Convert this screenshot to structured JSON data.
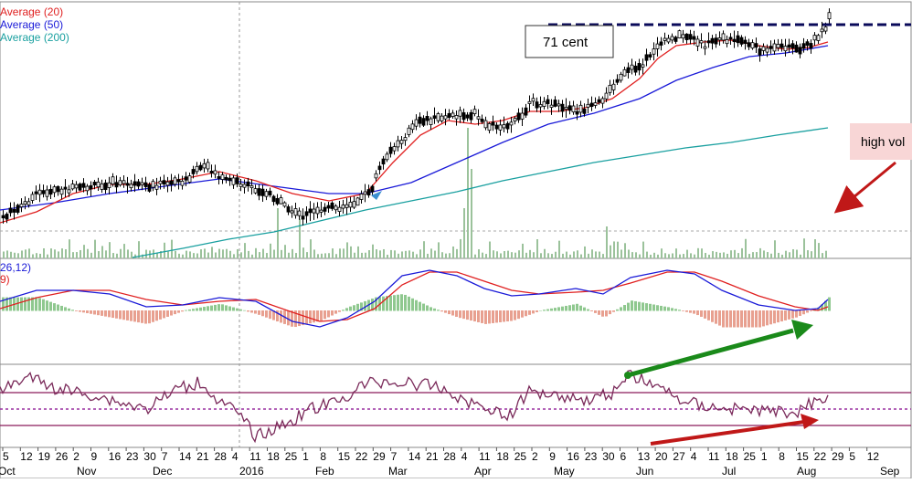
{
  "chart_data": [
    {
      "type": "candlestick",
      "panel": "price",
      "legend": [
        "Average (20)",
        "Average (50)",
        "Average (200)"
      ],
      "colors": {
        "ma20": "#e02020",
        "ma50": "#1a1ad8",
        "ma200": "#1aa0a0",
        "volume": "#9bc29b",
        "candle": "#000000"
      },
      "price_path": [
        [
          0,
          238
        ],
        [
          20,
          228
        ],
        [
          40,
          212
        ],
        [
          60,
          208
        ],
        [
          80,
          207
        ],
        [
          100,
          204
        ],
        [
          120,
          200
        ],
        [
          140,
          202
        ],
        [
          160,
          205
        ],
        [
          180,
          200
        ],
        [
          200,
          198
        ],
        [
          210,
          190
        ],
        [
          220,
          182
        ],
        [
          230,
          186
        ],
        [
          240,
          195
        ],
        [
          260,
          200
        ],
        [
          280,
          208
        ],
        [
          295,
          212
        ],
        [
          305,
          222
        ],
        [
          318,
          232
        ],
        [
          330,
          236
        ],
        [
          345,
          232
        ],
        [
          360,
          228
        ],
        [
          375,
          226
        ],
        [
          390,
          220
        ],
        [
          405,
          208
        ],
        [
          412,
          188
        ],
        [
          420,
          175
        ],
        [
          430,
          162
        ],
        [
          440,
          152
        ],
        [
          450,
          140
        ],
        [
          460,
          132
        ],
        [
          475,
          130
        ],
        [
          490,
          128
        ],
        [
          505,
          126
        ],
        [
          520,
          124
        ],
        [
          530,
          136
        ],
        [
          545,
          138
        ],
        [
          560,
          134
        ],
        [
          570,
          128
        ],
        [
          580,
          112
        ],
        [
          600,
          114
        ],
        [
          615,
          118
        ],
        [
          630,
          122
        ],
        [
          645,
          118
        ],
        [
          655,
          112
        ],
        [
          665,
          100
        ],
        [
          675,
          90
        ],
        [
          685,
          78
        ],
        [
          700,
          72
        ],
        [
          712,
          58
        ],
        [
          720,
          48
        ],
        [
          730,
          42
        ],
        [
          745,
          40
        ],
        [
          760,
          44
        ],
        [
          770,
          50
        ],
        [
          785,
          44
        ],
        [
          800,
          42
        ],
        [
          815,
          46
        ],
        [
          830,
          54
        ],
        [
          845,
          54
        ],
        [
          860,
          50
        ],
        [
          875,
          54
        ],
        [
          885,
          48
        ],
        [
          895,
          40
        ],
        [
          902,
          30
        ],
        [
          906,
          20
        ]
      ],
      "ma20_path": [
        [
          0,
          244
        ],
        [
          40,
          232
        ],
        [
          80,
          212
        ],
        [
          120,
          202
        ],
        [
          160,
          202
        ],
        [
          200,
          196
        ],
        [
          240,
          188
        ],
        [
          280,
          198
        ],
        [
          320,
          212
        ],
        [
          360,
          220
        ],
        [
          400,
          212
        ],
        [
          430,
          178
        ],
        [
          460,
          148
        ],
        [
          490,
          132
        ],
        [
          520,
          136
        ],
        [
          550,
          132
        ],
        [
          580,
          122
        ],
        [
          610,
          122
        ],
        [
          640,
          118
        ],
        [
          670,
          108
        ],
        [
          700,
          86
        ],
        [
          720,
          64
        ],
        [
          740,
          50
        ],
        [
          770,
          46
        ],
        [
          800,
          44
        ],
        [
          830,
          50
        ],
        [
          860,
          54
        ],
        [
          885,
          52
        ],
        [
          906,
          46
        ]
      ],
      "ma50_path": [
        [
          0,
          230
        ],
        [
          60,
          222
        ],
        [
          120,
          212
        ],
        [
          180,
          204
        ],
        [
          240,
          196
        ],
        [
          300,
          204
        ],
        [
          360,
          212
        ],
        [
          400,
          212
        ],
        [
          450,
          200
        ],
        [
          500,
          178
        ],
        [
          550,
          156
        ],
        [
          600,
          136
        ],
        [
          650,
          124
        ],
        [
          700,
          108
        ],
        [
          740,
          88
        ],
        [
          780,
          74
        ],
        [
          820,
          62
        ],
        [
          860,
          58
        ],
        [
          906,
          50
        ]
      ],
      "ma200_path": [
        [
          145,
          282
        ],
        [
          200,
          272
        ],
        [
          250,
          262
        ],
        [
          300,
          254
        ],
        [
          350,
          242
        ],
        [
          400,
          230
        ],
        [
          450,
          220
        ],
        [
          500,
          210
        ],
        [
          550,
          198
        ],
        [
          600,
          188
        ],
        [
          650,
          178
        ],
        [
          700,
          170
        ],
        [
          750,
          162
        ],
        [
          800,
          156
        ],
        [
          850,
          148
        ],
        [
          906,
          140
        ]
      ],
      "resistance_label": "71 cent",
      "volume_label": "high vol",
      "x_ticks": [
        "5",
        "12",
        "19",
        "26",
        "2",
        "9",
        "16",
        "23",
        "30",
        "7",
        "14",
        "21",
        "28",
        "4",
        "11",
        "18",
        "25",
        "1",
        "8",
        "15",
        "22",
        "29",
        "7",
        "14",
        "21",
        "28",
        "4",
        "11",
        "18",
        "25",
        "2",
        "9",
        "16",
        "23",
        "30",
        "6",
        "13",
        "20",
        "27",
        "4",
        "11",
        "18",
        "25",
        "1",
        "8",
        "15",
        "22",
        "29",
        "5",
        "12"
      ],
      "month_labels": [
        "Oct",
        "Nov",
        "Dec",
        "2016",
        "Feb",
        "Mar",
        "Apr",
        "May",
        "Jun",
        "Jul",
        "Aug",
        "Sep"
      ]
    },
    {
      "type": "line",
      "panel": "macd",
      "legend": [
        "26,12)",
        "9)"
      ],
      "colors": {
        "macd": "#1a1ad8",
        "signal": "#e02020",
        "hist_pos": "#8fc88f",
        "hist_neg": "#e8a090"
      }
    },
    {
      "type": "line",
      "panel": "rsi",
      "colors": {
        "rsi": "#7a2a5a",
        "bands": "#8b1a5a",
        "mid": "#9a30a0"
      }
    }
  ]
}
